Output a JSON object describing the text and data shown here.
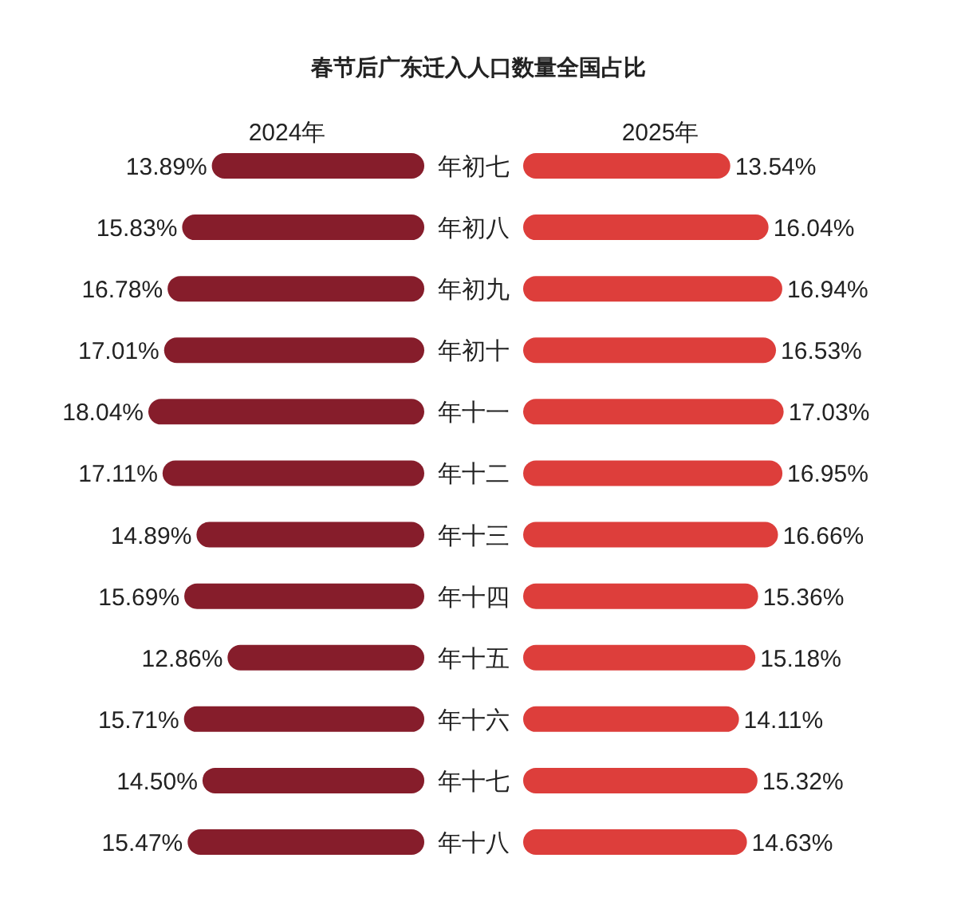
{
  "chart_data": [
    {
      "type": "bar",
      "orientation": "horizontal",
      "title": "春节后广东迁入人口数量全国占比",
      "categories": [
        "年初七",
        "年初八",
        "年初九",
        "年初十",
        "年十一",
        "年十二",
        "年十三",
        "年十四",
        "年十五",
        "年十六",
        "年十七",
        "年十八"
      ],
      "series": [
        {
          "name": "2024年",
          "color": "#861d2b",
          "values": [
            13.89,
            15.83,
            16.78,
            17.01,
            18.04,
            17.11,
            14.89,
            15.69,
            12.86,
            15.71,
            14.5,
            15.47
          ],
          "value_labels": [
            "13.89%",
            "15.83%",
            "16.78%",
            "17.01%",
            "18.04%",
            "17.11%",
            "14.89%",
            "15.69%",
            "12.86%",
            "15.71%",
            "14.50%",
            "15.47%"
          ]
        }
      ]
    },
    {
      "type": "bar",
      "orientation": "horizontal",
      "categories": [
        null,
        null,
        null,
        null,
        null,
        null,
        null,
        null,
        null,
        null,
        null,
        null
      ],
      "series": [
        {
          "name": "2025年",
          "color": "#dd3e3b",
          "values": [
            13.54,
            16.04,
            16.94,
            16.53,
            17.03,
            16.95,
            16.66,
            15.36,
            15.18,
            14.11,
            15.32,
            14.63
          ],
          "value_labels": [
            "13.54%",
            "16.04%",
            "16.94%",
            "16.53%",
            "17.03%",
            "16.95%",
            "16.66%",
            "15.36%",
            "15.18%",
            "14.11%",
            "15.32%",
            "14.63%"
          ]
        }
      ]
    }
  ]
}
